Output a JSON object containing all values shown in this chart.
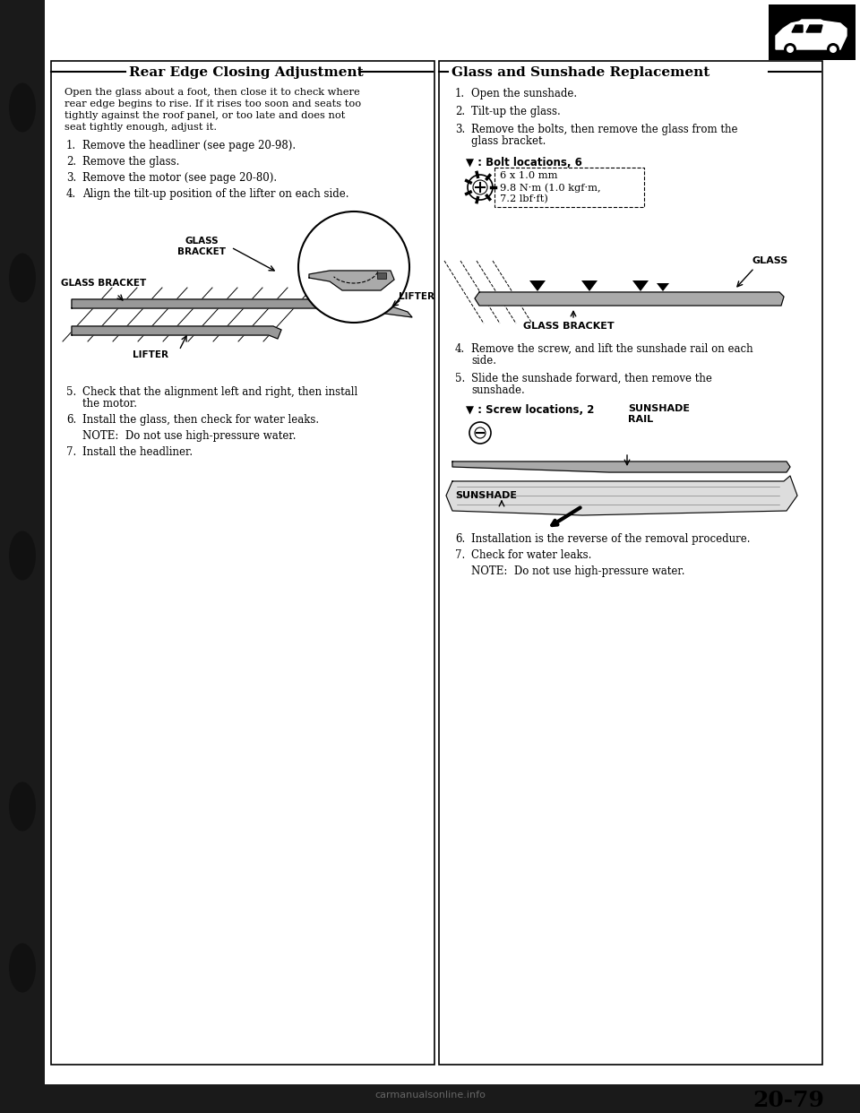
{
  "bg_color": "#ffffff",
  "outer_bg": "#888888",
  "left_section_title": "Rear Edge Closing Adjustment",
  "right_section_title": "Glass and Sunshade Replacement",
  "left_intro": "Open the glass about a foot, then close it to check where\nrear edge begins to rise. If it rises too soon and seats too\ntightly against the roof panel, or too late and does not\nseat tightly enough, adjust it.",
  "left_steps_1_4": [
    "Remove the headliner (see page 20-98).",
    "Remove the glass.",
    "Remove the motor (see page 20-80).",
    "Align the tilt-up position of the lifter on each side."
  ],
  "left_steps_5_7": [
    "Check that the alignment left and right, then install\nthe motor.",
    "Install the glass, then check for water leaks.",
    "Install the headliner."
  ],
  "left_note": "NOTE:  Do not use high-pressure water.",
  "right_steps_1_3": [
    "Open the sunshade.",
    "Tilt-up the glass.",
    "Remove the bolts, then remove the glass from the\nglass bracket."
  ],
  "right_bolt_header": "▼ : Bolt locations, 6",
  "right_bolt_spec_lines": [
    "6 x 1.0 mm",
    "9.8 N·m (1.0 kgf·m,",
    "7.2 lbf·ft)"
  ],
  "right_steps_4_5": [
    "Remove the screw, and lift the sunshade rail on each\nside.",
    "Slide the sunshade forward, then remove the\nsunshade."
  ],
  "right_note_screw": "▼ : Screw locations, 2",
  "right_steps_6_7": [
    "Installation is the reverse of the removal procedure.",
    "Check for water leaks."
  ],
  "right_note_end": "NOTE:  Do not use high-pressure water.",
  "page_number": "20-79",
  "footer_text": "carmanualsonline.info",
  "left_diag_labels": [
    "GLASS\nBRACKET",
    "GLASS BRACKET",
    "LIFTER",
    "LIFTER"
  ],
  "right_diag1_labels": [
    "GLASS",
    "GLASS BRACKET"
  ],
  "right_diag2_labels": [
    "SUNSHADE\nRAIL",
    "SUNSHADE"
  ]
}
